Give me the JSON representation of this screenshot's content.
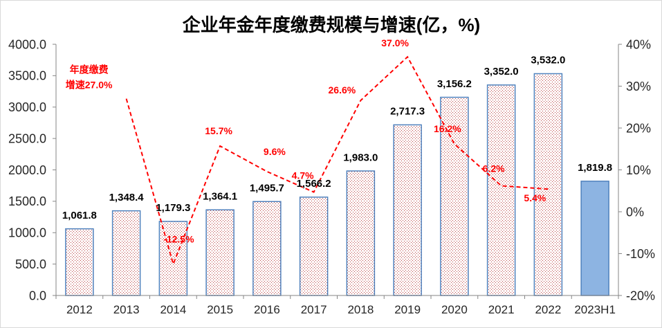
{
  "chart_data": {
    "type": "bar",
    "title": "企业年金年度缴费规模与增速(亿，%)",
    "categories": [
      "2012",
      "2013",
      "2014",
      "2015",
      "2016",
      "2017",
      "2018",
      "2019",
      "2020",
      "2021",
      "2022",
      "2023H1"
    ],
    "series": [
      {
        "type": "bar",
        "secondary_axis": false,
        "values": [
          1061.8,
          1348.4,
          1179.3,
          1364.1,
          1495.7,
          1566.2,
          1983.0,
          2717.3,
          3156.2,
          3352.0,
          3532.0,
          1819.8
        ],
        "value_labels": [
          "1,061.8",
          "1,348.4",
          "1,179.3",
          "1,364.1",
          "1,495.7",
          "1,566.2",
          "1,983.0",
          "2,717.3",
          "3,156.2",
          "3,352.0",
          "3,532.0",
          "1,819.8"
        ],
        "solid_fill": [
          false,
          false,
          false,
          false,
          false,
          false,
          false,
          false,
          false,
          false,
          false,
          true
        ]
      },
      {
        "type": "line",
        "secondary_axis": true,
        "dashed": true,
        "markers": false,
        "values": [
          null,
          27.0,
          -12.5,
          15.7,
          9.6,
          4.7,
          26.6,
          37.0,
          16.2,
          6.2,
          5.4,
          null
        ],
        "labels": [
          null,
          [
            "年度缴费",
            "增速27.0%"
          ],
          "-12.5%",
          "15.7%",
          "9.6%",
          "4.7%",
          "26.6%",
          "37.0%",
          "16.2%",
          "6.2%",
          "5.4%",
          null
        ]
      }
    ],
    "ylim": [
      0,
      4000
    ],
    "y_ticks": [
      0,
      500,
      1000,
      1500,
      2000,
      2500,
      3000,
      3500,
      4000
    ],
    "y_tick_labels": [
      "0.0",
      "500.0",
      "1000.0",
      "1500.0",
      "2000.0",
      "2500.0",
      "3000.0",
      "3500.0",
      "4000.0"
    ],
    "y2lim": [
      -20,
      40
    ],
    "y2_ticks": [
      -20,
      -10,
      0,
      10,
      20,
      30,
      40
    ],
    "y2_tick_labels": [
      "-20%",
      "-10%",
      "0%",
      "10%",
      "20%",
      "30%",
      "40%"
    ],
    "grid": false,
    "legend": false,
    "colors": {
      "bar_border": "#4F81BD",
      "bar_pattern_dots": "#B83B3B",
      "solid_bar_fill": "#8DB4E2",
      "line": "#FF0000",
      "line_labels": "#FF0000",
      "axis": "#868686"
    }
  }
}
